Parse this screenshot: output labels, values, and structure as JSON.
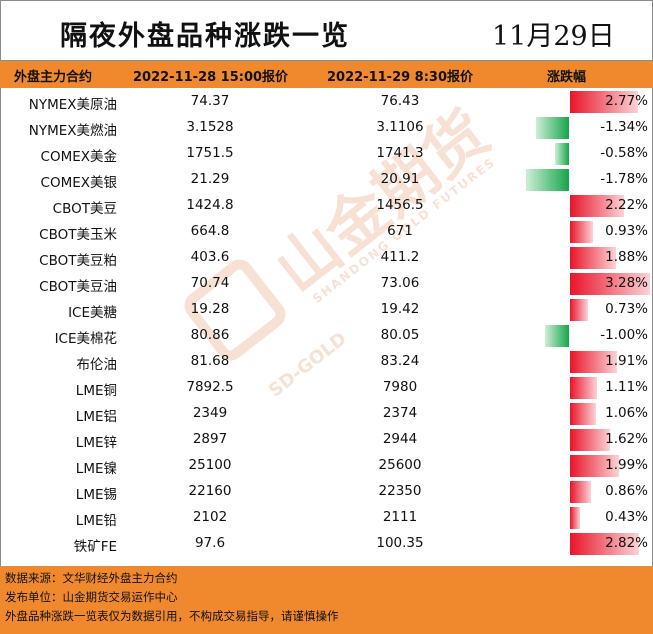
{
  "title": "隔夜外盘品种涨跌一览",
  "date": "11月29日",
  "headers": {
    "contract": "外盘主力合约",
    "price1": "2022-11-28 15:00报价",
    "price2": "2022-11-29 8:30报价",
    "change": "涨跌幅"
  },
  "rows": [
    {
      "name": "NYMEX美原油",
      "p1": "74.37",
      "p2": "76.43",
      "pct": "2.77%",
      "change": 2.77
    },
    {
      "name": "NYMEX美燃油",
      "p1": "3.1528",
      "p2": "3.1106",
      "pct": "-1.34%",
      "change": -1.34
    },
    {
      "name": "COMEX美金",
      "p1": "1751.5",
      "p2": "1741.3",
      "pct": "-0.58%",
      "change": -0.58
    },
    {
      "name": "COMEX美银",
      "p1": "21.29",
      "p2": "20.91",
      "pct": "-1.78%",
      "change": -1.78
    },
    {
      "name": "CBOT美豆",
      "p1": "1424.8",
      "p2": "1456.5",
      "pct": "2.22%",
      "change": 2.22
    },
    {
      "name": "CBOT美玉米",
      "p1": "664.8",
      "p2": "671",
      "pct": "0.93%",
      "change": 0.93
    },
    {
      "name": "CBOT美豆粕",
      "p1": "403.6",
      "p2": "411.2",
      "pct": "1.88%",
      "change": 1.88
    },
    {
      "name": "CBOT美豆油",
      "p1": "70.74",
      "p2": "73.06",
      "pct": "3.28%",
      "change": 3.28
    },
    {
      "name": "ICE美糖",
      "p1": "19.28",
      "p2": "19.42",
      "pct": "0.73%",
      "change": 0.73
    },
    {
      "name": "ICE美棉花",
      "p1": "80.86",
      "p2": "80.05",
      "pct": "-1.00%",
      "change": -1.0
    },
    {
      "name": "布伦油",
      "p1": "81.68",
      "p2": "83.24",
      "pct": "1.91%",
      "change": 1.91
    },
    {
      "name": "LME铜",
      "p1": "7892.5",
      "p2": "7980",
      "pct": "1.11%",
      "change": 1.11
    },
    {
      "name": "LME铝",
      "p1": "2349",
      "p2": "2374",
      "pct": "1.06%",
      "change": 1.06
    },
    {
      "name": "LME锌",
      "p1": "2897",
      "p2": "2944",
      "pct": "1.62%",
      "change": 1.62
    },
    {
      "name": "LME镍",
      "p1": "25100",
      "p2": "25600",
      "pct": "1.99%",
      "change": 1.99
    },
    {
      "name": "LME锡",
      "p1": "22160",
      "p2": "22350",
      "pct": "0.86%",
      "change": 0.86
    },
    {
      "name": "LME铅",
      "p1": "2102",
      "p2": "2111",
      "pct": "0.43%",
      "change": 0.43
    },
    {
      "name": "铁矿FE",
      "p1": "97.6",
      "p2": "100.35",
      "pct": "2.82%",
      "change": 2.82
    }
  ],
  "footer": {
    "source": "数据来源：文华财经外盘主力合约",
    "publisher": "发布单位：山金期货交易运作中心",
    "disclaimer": "外盘品种涨跌一览表仅为数据引用，不构成交易指导，请谨慎操作"
  },
  "watermark": {
    "cn": "山金期货",
    "en": "SHANDONG GOLD FUTURES",
    "brand": "SD-GOLD"
  },
  "colors": {
    "accent": "#f0892e",
    "up": "#e8152a",
    "down": "#16a54a"
  }
}
